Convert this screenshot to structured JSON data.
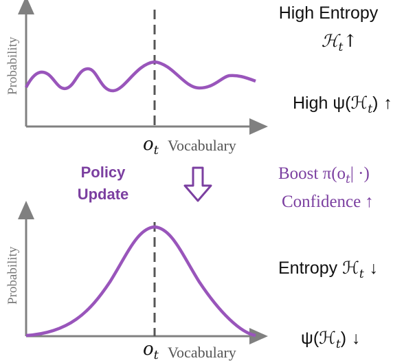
{
  "top_panel": {
    "ylabel": "Probability",
    "xlabel": "Vocabulary",
    "marker_symbol": "o",
    "marker_subscript": "t",
    "right_labels": {
      "line1": "High Entropy",
      "line2_symbol": "ℋ",
      "line2_subscript": "t",
      "line2_arrow": "↑",
      "line3_prefix": "High ψ(ℋ",
      "line3_subscript": "t",
      "line3_suffix": ")",
      "line3_arrow": "↑"
    }
  },
  "middle": {
    "update_label_line1": "Policy",
    "update_label_line2": "Update",
    "arrow_icon": "down-arrow-icon",
    "boost_prefix": "Boost π(o",
    "boost_subscript": "t",
    "boost_suffix": "| ·)",
    "confidence_label": "Confidence",
    "confidence_arrow": "↑"
  },
  "bottom_panel": {
    "ylabel": "Probability",
    "xlabel": "Vocabulary",
    "marker_symbol": "o",
    "marker_subscript": "t",
    "right_labels": {
      "entropy_label": "Entropy ℋ",
      "entropy_subscript": "t",
      "entropy_arrow": "↓",
      "psi_prefix": "ψ(ℋ",
      "psi_subscript": "t",
      "psi_suffix": ")",
      "psi_arrow": "↓"
    }
  },
  "colors": {
    "curve": "#9955bb",
    "axis": "#808080",
    "dashed": "#555555",
    "accent_text": "#7b3fa0",
    "text": "#111111"
  }
}
